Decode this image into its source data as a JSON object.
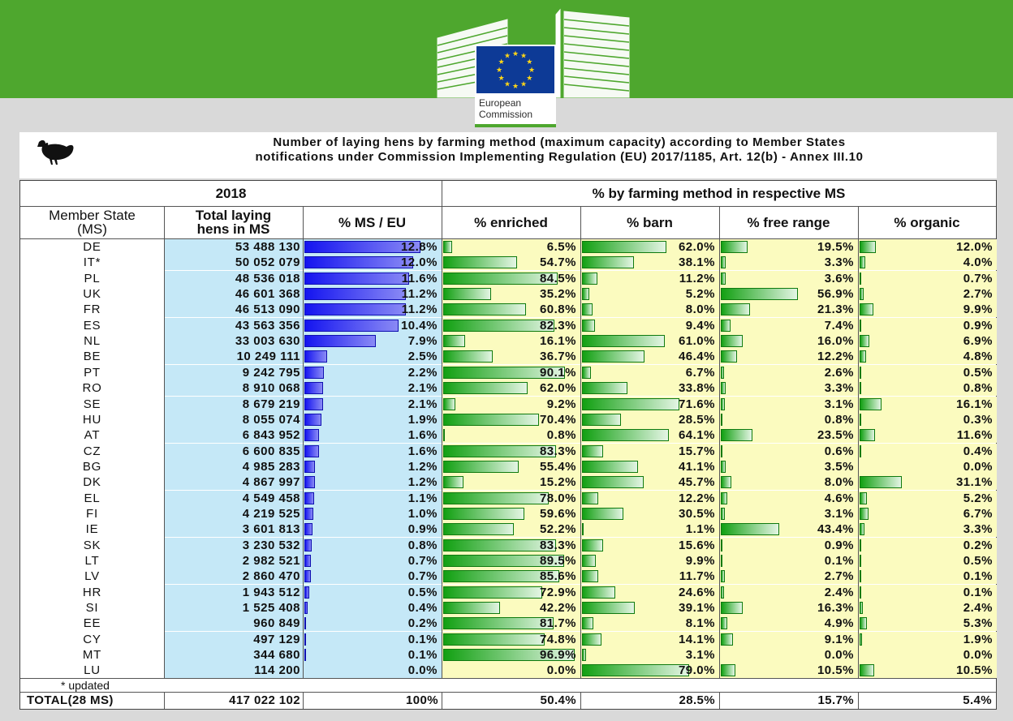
{
  "header": {
    "brand_line1": "European",
    "brand_line2": "Commission",
    "title_line1": "Number of laying hens by farming method (maximum capacity) according to Member States",
    "title_line2": "notifications under Commission Implementing Regulation (EU) 2017/1185, Art. 12(b) - Annex III.10",
    "icon": "hen-icon",
    "banner_color": "#4ea72e"
  },
  "table": {
    "year": "2018",
    "group_header": "% by farming method in respective MS",
    "col_ms_line1": "Member State",
    "col_ms_line2": "(MS)",
    "col_total_line1": "Total laying",
    "col_total_line2": "hens in MS",
    "col_share": "% MS / EU",
    "col_enriched": "% enriched",
    "col_barn": "% barn",
    "col_free": "% free range",
    "col_organic": "% organic",
    "note": "* updated",
    "total_label": "TOTAL(28 MS)",
    "total_hens": "417 022 102",
    "total_share": "100%",
    "total_enriched": "50.4%",
    "total_barn": "28.5%",
    "total_free": "15.7%",
    "total_organic": "5.4%",
    "colors": {
      "share_bar": "#1414f0",
      "method_bar": "#12a012",
      "share_bg": "#c5e8f7",
      "method_bg": "#fbfbbf"
    }
  },
  "chart_data": {
    "type": "table",
    "columns": [
      "Member State (MS)",
      "Total laying hens in MS",
      "% MS / EU",
      "% enriched",
      "% barn",
      "% free range",
      "% organic"
    ],
    "rows": [
      {
        "ms": "DE",
        "total": "53 488 130",
        "share": 12.8,
        "enriched": 6.5,
        "barn": 62.0,
        "free": 19.5,
        "organic": 12.0
      },
      {
        "ms": "IT*",
        "total": "50 052 079",
        "share": 12.0,
        "enriched": 54.7,
        "barn": 38.1,
        "free": 3.3,
        "organic": 4.0
      },
      {
        "ms": "PL",
        "total": "48 536 018",
        "share": 11.6,
        "enriched": 84.5,
        "barn": 11.2,
        "free": 3.6,
        "organic": 0.7
      },
      {
        "ms": "UK",
        "total": "46 601 368",
        "share": 11.2,
        "enriched": 35.2,
        "barn": 5.2,
        "free": 56.9,
        "organic": 2.7
      },
      {
        "ms": "FR",
        "total": "46 513 090",
        "share": 11.2,
        "enriched": 60.8,
        "barn": 8.0,
        "free": 21.3,
        "organic": 9.9
      },
      {
        "ms": "ES",
        "total": "43 563 356",
        "share": 10.4,
        "enriched": 82.3,
        "barn": 9.4,
        "free": 7.4,
        "organic": 0.9
      },
      {
        "ms": "NL",
        "total": "33 003 630",
        "share": 7.9,
        "enriched": 16.1,
        "barn": 61.0,
        "free": 16.0,
        "organic": 6.9
      },
      {
        "ms": "BE",
        "total": "10 249 111",
        "share": 2.5,
        "enriched": 36.7,
        "barn": 46.4,
        "free": 12.2,
        "organic": 4.8
      },
      {
        "ms": "PT",
        "total": "9 242 795",
        "share": 2.2,
        "enriched": 90.1,
        "barn": 6.7,
        "free": 2.6,
        "organic": 0.5
      },
      {
        "ms": "RO",
        "total": "8 910 068",
        "share": 2.1,
        "enriched": 62.0,
        "barn": 33.8,
        "free": 3.3,
        "organic": 0.8
      },
      {
        "ms": "SE",
        "total": "8 679 219",
        "share": 2.1,
        "enriched": 9.2,
        "barn": 71.6,
        "free": 3.1,
        "organic": 16.1
      },
      {
        "ms": "HU",
        "total": "8 055 074",
        "share": 1.9,
        "enriched": 70.4,
        "barn": 28.5,
        "free": 0.8,
        "organic": 0.3
      },
      {
        "ms": "AT",
        "total": "6 843 952",
        "share": 1.6,
        "enriched": 0.8,
        "barn": 64.1,
        "free": 23.5,
        "organic": 11.6
      },
      {
        "ms": "CZ",
        "total": "6 600 835",
        "share": 1.6,
        "enriched": 83.3,
        "barn": 15.7,
        "free": 0.6,
        "organic": 0.4
      },
      {
        "ms": "BG",
        "total": "4 985 283",
        "share": 1.2,
        "enriched": 55.4,
        "barn": 41.1,
        "free": 3.5,
        "organic": 0.0
      },
      {
        "ms": "DK",
        "total": "4 867 997",
        "share": 1.2,
        "enriched": 15.2,
        "barn": 45.7,
        "free": 8.0,
        "organic": 31.1
      },
      {
        "ms": "EL",
        "total": "4 549 458",
        "share": 1.1,
        "enriched": 78.0,
        "barn": 12.2,
        "free": 4.6,
        "organic": 5.2
      },
      {
        "ms": "FI",
        "total": "4 219 525",
        "share": 1.0,
        "enriched": 59.6,
        "barn": 30.5,
        "free": 3.1,
        "organic": 6.7
      },
      {
        "ms": "IE",
        "total": "3 601 813",
        "share": 0.9,
        "enriched": 52.2,
        "barn": 1.1,
        "free": 43.4,
        "organic": 3.3
      },
      {
        "ms": "SK",
        "total": "3 230 532",
        "share": 0.8,
        "enriched": 83.3,
        "barn": 15.6,
        "free": 0.9,
        "organic": 0.2
      },
      {
        "ms": "LT",
        "total": "2 982 521",
        "share": 0.7,
        "enriched": 89.5,
        "barn": 9.9,
        "free": 0.1,
        "organic": 0.5
      },
      {
        "ms": "LV",
        "total": "2 860 470",
        "share": 0.7,
        "enriched": 85.6,
        "barn": 11.7,
        "free": 2.7,
        "organic": 0.1
      },
      {
        "ms": "HR",
        "total": "1 943 512",
        "share": 0.5,
        "enriched": 72.9,
        "barn": 24.6,
        "free": 2.4,
        "organic": 0.1
      },
      {
        "ms": "SI",
        "total": "1 525 408",
        "share": 0.4,
        "enriched": 42.2,
        "barn": 39.1,
        "free": 16.3,
        "organic": 2.4
      },
      {
        "ms": "EE",
        "total": "960 849",
        "share": 0.2,
        "enriched": 81.7,
        "barn": 8.1,
        "free": 4.9,
        "organic": 5.3
      },
      {
        "ms": "CY",
        "total": "497 129",
        "share": 0.1,
        "enriched": 74.8,
        "barn": 14.1,
        "free": 9.1,
        "organic": 1.9
      },
      {
        "ms": "MT",
        "total": "344 680",
        "share": 0.1,
        "enriched": 96.9,
        "barn": 3.1,
        "free": 0.0,
        "organic": 0.0
      },
      {
        "ms": "LU",
        "total": "114 200",
        "share": 0.0,
        "enriched": 0.0,
        "barn": 79.0,
        "free": 10.5,
        "organic": 10.5
      }
    ]
  }
}
